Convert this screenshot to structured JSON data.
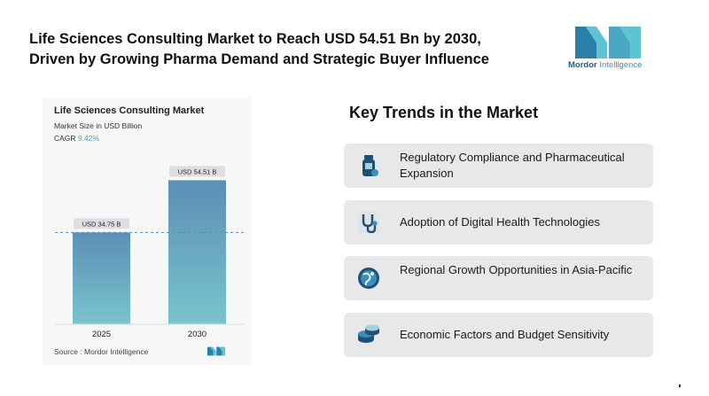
{
  "headline": {
    "line1": "Life Sciences Consulting Market to Reach USD 54.51 Bn by 2030,",
    "line2": "Driven by Growing Pharma Demand and Strategic Buyer Influence"
  },
  "logo": {
    "word1": "Mordor",
    "word2": " Intelligence",
    "colors": [
      "#2a7fa8",
      "#5ec3d3",
      "#1f5e8a"
    ]
  },
  "chart_data": {
    "type": "bar",
    "title": "Life Sciences Consulting Market",
    "subtitle": "Market Size in USD Billion",
    "cagr_label": "CAGR",
    "cagr_value": "9.42%",
    "categories": [
      "2025",
      "2030"
    ],
    "values": [
      34.75,
      54.51
    ],
    "data_labels": [
      "USD 34.75 B",
      "USD 54.51 B"
    ],
    "ylim": [
      0,
      60
    ],
    "grid": false,
    "bar_color_top": "#5b8fb5",
    "bar_color_bottom": "#79c4cd"
  },
  "source": "Source : Mordor Intelligence",
  "trends": {
    "title": "Key Trends in the Market",
    "items": [
      {
        "label": "Regulatory Compliance and Pharmaceutical Expansion",
        "icon": "medicine-bottle-icon"
      },
      {
        "label": "Adoption of Digital Health Technologies",
        "icon": "stethoscope-icon"
      },
      {
        "label": "Regional Growth Opportunities in Asia-Pacific",
        "icon": "globe-icon"
      },
      {
        "label": "Economic Factors and Budget Sensitivity",
        "icon": "coins-icon"
      }
    ]
  }
}
